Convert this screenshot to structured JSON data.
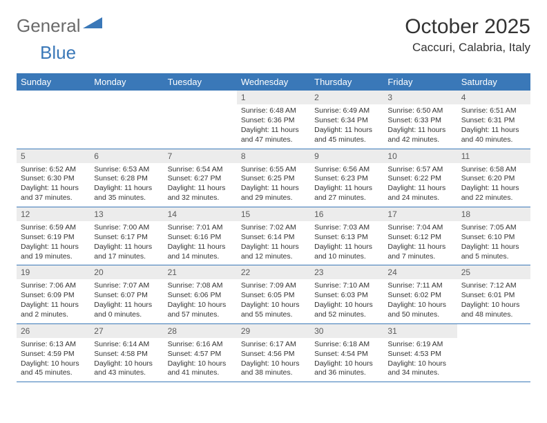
{
  "brand": {
    "text1": "General",
    "text2": "Blue",
    "logo_color": "#3a78b8"
  },
  "title": "October 2025",
  "location": "Caccuri, Calabria, Italy",
  "colors": {
    "header_bg": "#3a78b8",
    "header_fg": "#ffffff",
    "daynum_bg": "#ececec",
    "border": "#3a78b8"
  },
  "day_headers": [
    "Sunday",
    "Monday",
    "Tuesday",
    "Wednesday",
    "Thursday",
    "Friday",
    "Saturday"
  ],
  "weeks": [
    [
      {
        "n": "",
        "sr": "",
        "ss": "",
        "dl": ""
      },
      {
        "n": "",
        "sr": "",
        "ss": "",
        "dl": ""
      },
      {
        "n": "",
        "sr": "",
        "ss": "",
        "dl": ""
      },
      {
        "n": "1",
        "sr": "6:48 AM",
        "ss": "6:36 PM",
        "dl": "11 hours and 47 minutes."
      },
      {
        "n": "2",
        "sr": "6:49 AM",
        "ss": "6:34 PM",
        "dl": "11 hours and 45 minutes."
      },
      {
        "n": "3",
        "sr": "6:50 AM",
        "ss": "6:33 PM",
        "dl": "11 hours and 42 minutes."
      },
      {
        "n": "4",
        "sr": "6:51 AM",
        "ss": "6:31 PM",
        "dl": "11 hours and 40 minutes."
      }
    ],
    [
      {
        "n": "5",
        "sr": "6:52 AM",
        "ss": "6:30 PM",
        "dl": "11 hours and 37 minutes."
      },
      {
        "n": "6",
        "sr": "6:53 AM",
        "ss": "6:28 PM",
        "dl": "11 hours and 35 minutes."
      },
      {
        "n": "7",
        "sr": "6:54 AM",
        "ss": "6:27 PM",
        "dl": "11 hours and 32 minutes."
      },
      {
        "n": "8",
        "sr": "6:55 AM",
        "ss": "6:25 PM",
        "dl": "11 hours and 29 minutes."
      },
      {
        "n": "9",
        "sr": "6:56 AM",
        "ss": "6:23 PM",
        "dl": "11 hours and 27 minutes."
      },
      {
        "n": "10",
        "sr": "6:57 AM",
        "ss": "6:22 PM",
        "dl": "11 hours and 24 minutes."
      },
      {
        "n": "11",
        "sr": "6:58 AM",
        "ss": "6:20 PM",
        "dl": "11 hours and 22 minutes."
      }
    ],
    [
      {
        "n": "12",
        "sr": "6:59 AM",
        "ss": "6:19 PM",
        "dl": "11 hours and 19 minutes."
      },
      {
        "n": "13",
        "sr": "7:00 AM",
        "ss": "6:17 PM",
        "dl": "11 hours and 17 minutes."
      },
      {
        "n": "14",
        "sr": "7:01 AM",
        "ss": "6:16 PM",
        "dl": "11 hours and 14 minutes."
      },
      {
        "n": "15",
        "sr": "7:02 AM",
        "ss": "6:14 PM",
        "dl": "11 hours and 12 minutes."
      },
      {
        "n": "16",
        "sr": "7:03 AM",
        "ss": "6:13 PM",
        "dl": "11 hours and 10 minutes."
      },
      {
        "n": "17",
        "sr": "7:04 AM",
        "ss": "6:12 PM",
        "dl": "11 hours and 7 minutes."
      },
      {
        "n": "18",
        "sr": "7:05 AM",
        "ss": "6:10 PM",
        "dl": "11 hours and 5 minutes."
      }
    ],
    [
      {
        "n": "19",
        "sr": "7:06 AM",
        "ss": "6:09 PM",
        "dl": "11 hours and 2 minutes."
      },
      {
        "n": "20",
        "sr": "7:07 AM",
        "ss": "6:07 PM",
        "dl": "11 hours and 0 minutes."
      },
      {
        "n": "21",
        "sr": "7:08 AM",
        "ss": "6:06 PM",
        "dl": "10 hours and 57 minutes."
      },
      {
        "n": "22",
        "sr": "7:09 AM",
        "ss": "6:05 PM",
        "dl": "10 hours and 55 minutes."
      },
      {
        "n": "23",
        "sr": "7:10 AM",
        "ss": "6:03 PM",
        "dl": "10 hours and 52 minutes."
      },
      {
        "n": "24",
        "sr": "7:11 AM",
        "ss": "6:02 PM",
        "dl": "10 hours and 50 minutes."
      },
      {
        "n": "25",
        "sr": "7:12 AM",
        "ss": "6:01 PM",
        "dl": "10 hours and 48 minutes."
      }
    ],
    [
      {
        "n": "26",
        "sr": "6:13 AM",
        "ss": "4:59 PM",
        "dl": "10 hours and 45 minutes."
      },
      {
        "n": "27",
        "sr": "6:14 AM",
        "ss": "4:58 PM",
        "dl": "10 hours and 43 minutes."
      },
      {
        "n": "28",
        "sr": "6:16 AM",
        "ss": "4:57 PM",
        "dl": "10 hours and 41 minutes."
      },
      {
        "n": "29",
        "sr": "6:17 AM",
        "ss": "4:56 PM",
        "dl": "10 hours and 38 minutes."
      },
      {
        "n": "30",
        "sr": "6:18 AM",
        "ss": "4:54 PM",
        "dl": "10 hours and 36 minutes."
      },
      {
        "n": "31",
        "sr": "6:19 AM",
        "ss": "4:53 PM",
        "dl": "10 hours and 34 minutes."
      },
      {
        "n": "",
        "sr": "",
        "ss": "",
        "dl": ""
      }
    ]
  ],
  "labels": {
    "sunrise": "Sunrise:",
    "sunset": "Sunset:",
    "daylight": "Daylight:"
  }
}
